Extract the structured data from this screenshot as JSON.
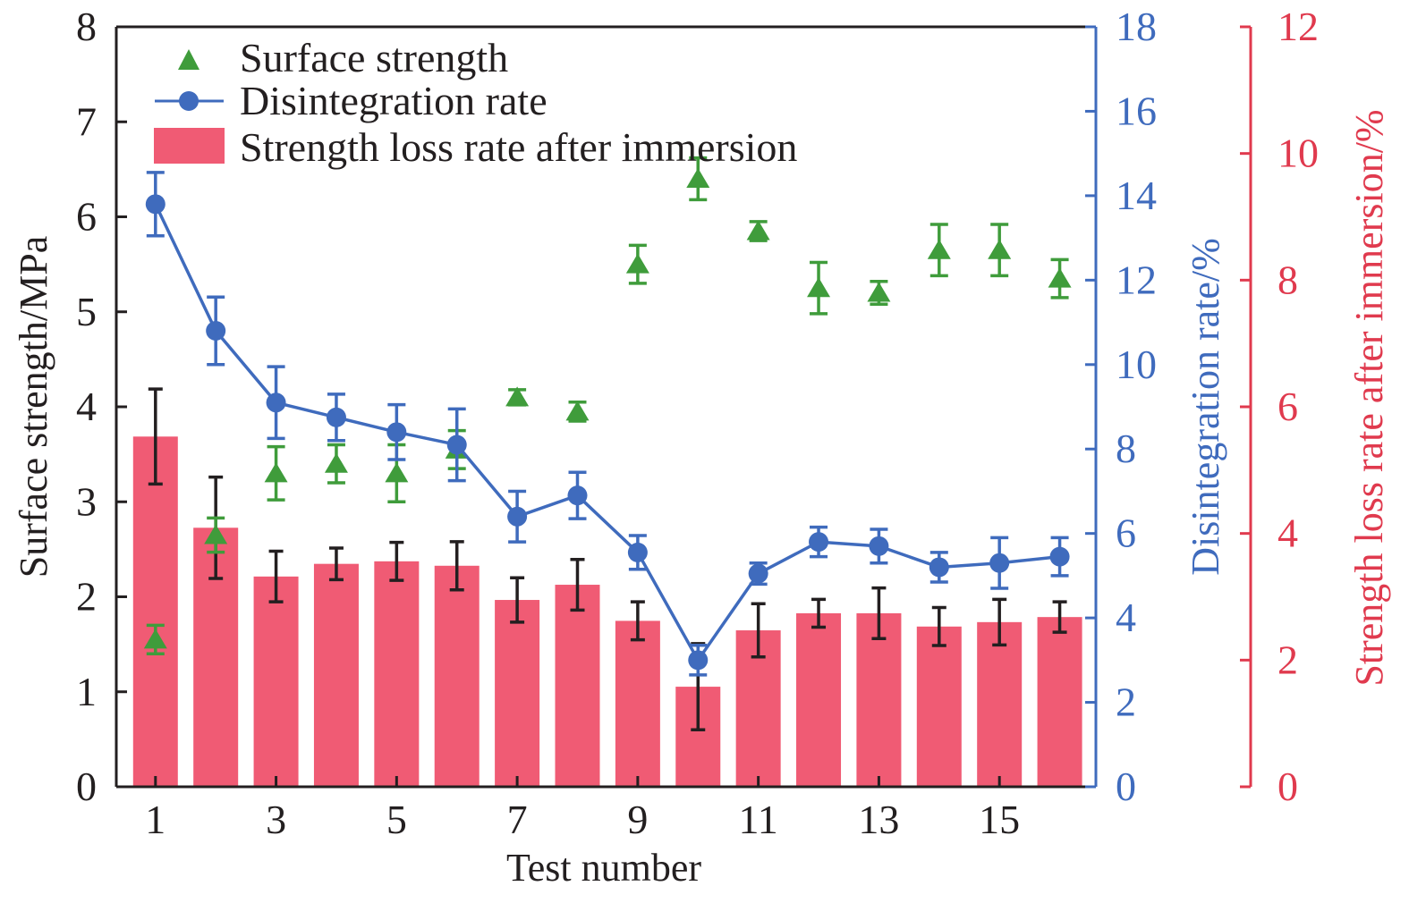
{
  "chart_data": {
    "type": "bar",
    "title": "",
    "xlabel": "Test number",
    "x": [
      1,
      2,
      3,
      4,
      5,
      6,
      7,
      8,
      9,
      10,
      11,
      12,
      13,
      14,
      15,
      16
    ],
    "x_ticks": [
      "1",
      "3",
      "5",
      "7",
      "9",
      "11",
      "13",
      "15"
    ],
    "x_tick_values": [
      1,
      3,
      5,
      7,
      9,
      11,
      13,
      15
    ],
    "xlim": [
      0.35,
      16.6
    ],
    "axes": {
      "left": {
        "label": "Surface strength/MPa",
        "ylim": [
          0,
          8
        ],
        "ticks": [
          "0",
          "1",
          "2",
          "3",
          "4",
          "5",
          "6",
          "7",
          "8"
        ],
        "color": "#231f20"
      },
      "right1": {
        "label": "Disintegration rate/%",
        "ylim": [
          0,
          18
        ],
        "ticks": [
          "0",
          "2",
          "4",
          "6",
          "8",
          "10",
          "12",
          "14",
          "16",
          "18"
        ],
        "color": "#3f6bbd"
      },
      "right2": {
        "label": "Strength loss rate after immersion/%",
        "ylim": [
          0,
          12
        ],
        "ticks": [
          "0",
          "2",
          "4",
          "6",
          "8",
          "10",
          "12"
        ],
        "color": "#e03a4e"
      }
    },
    "legend": {
      "placement": "top-left",
      "entries": [
        "Surface strength",
        "Disintegration rate",
        "Strength loss rate after immersion"
      ]
    },
    "series": [
      {
        "name": "Strength loss rate after immersion",
        "kind": "bar",
        "axis": "right2",
        "color": "#f05b74",
        "error_color": "#231f20",
        "values": [
          5.53,
          4.09,
          3.32,
          3.52,
          3.56,
          3.49,
          2.95,
          3.19,
          2.62,
          1.58,
          2.47,
          2.74,
          2.74,
          2.53,
          2.6,
          2.68
        ],
        "err": [
          0.75,
          0.8,
          0.4,
          0.25,
          0.3,
          0.38,
          0.35,
          0.4,
          0.3,
          0.68,
          0.42,
          0.22,
          0.4,
          0.3,
          0.36,
          0.24
        ]
      },
      {
        "name": "Disintegration rate",
        "kind": "line",
        "axis": "right1",
        "color": "#3f6bbd",
        "values": [
          13.8,
          10.8,
          9.1,
          8.75,
          8.4,
          8.1,
          6.4,
          6.9,
          5.55,
          3.0,
          5.05,
          5.8,
          5.7,
          5.2,
          5.3,
          5.45
        ],
        "err": [
          0.75,
          0.8,
          0.85,
          0.55,
          0.65,
          0.85,
          0.6,
          0.55,
          0.4,
          0.35,
          0.25,
          0.35,
          0.4,
          0.35,
          0.6,
          0.45
        ]
      },
      {
        "name": "Surface strength",
        "kind": "scatter",
        "axis": "left",
        "marker": "triangle",
        "color": "#3f9c3b",
        "values": [
          1.55,
          2.65,
          3.3,
          3.4,
          3.3,
          3.55,
          4.1,
          3.95,
          5.5,
          6.4,
          5.85,
          5.25,
          5.2,
          5.65,
          5.65,
          5.35
        ],
        "err": [
          0.15,
          0.18,
          0.28,
          0.2,
          0.3,
          0.2,
          0.08,
          0.1,
          0.2,
          0.22,
          0.1,
          0.27,
          0.12,
          0.27,
          0.27,
          0.2
        ]
      }
    ]
  }
}
